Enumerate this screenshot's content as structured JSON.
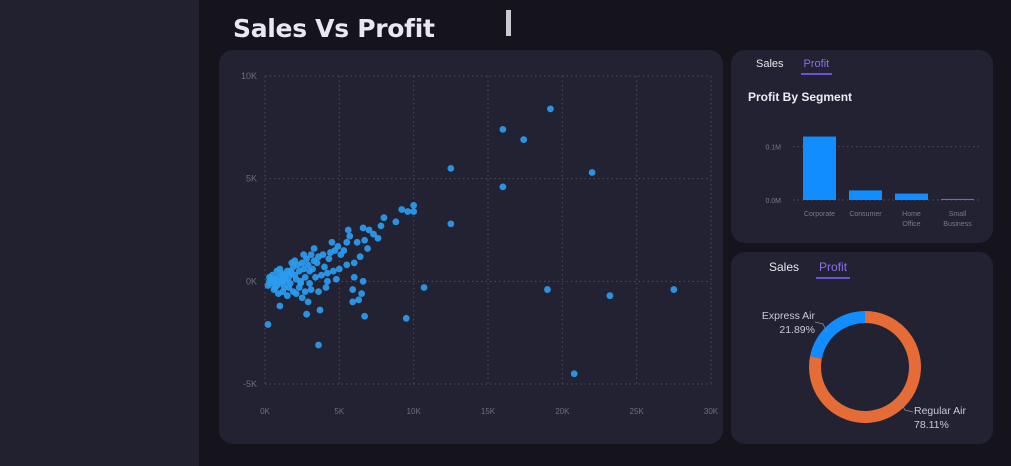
{
  "page": {
    "title": "Sales Vs Profit"
  },
  "colors": {
    "accent": "#2b9cf0",
    "bar": "#118dff",
    "donut_regular": "#e66c37",
    "donut_express": "#118dff",
    "tab_active": "#8e6df0"
  },
  "scatter_card": {
    "chart_data": {
      "type": "scatter",
      "xlim": [
        0,
        30000
      ],
      "ylim": [
        -5000,
        10000
      ],
      "x_ticks": [
        0,
        5000,
        10000,
        15000,
        20000,
        25000,
        30000
      ],
      "x_tick_labels": [
        "0K",
        "5K",
        "10K",
        "15K",
        "20K",
        "25K",
        "30K"
      ],
      "y_ticks": [
        10000,
        5000,
        0,
        -5000
      ],
      "y_tick_labels": [
        "10K",
        "5K",
        "0K",
        "-5K"
      ],
      "grid": true,
      "points": [
        [
          19200,
          8400
        ],
        [
          16000,
          7400
        ],
        [
          17400,
          6900
        ],
        [
          12500,
          5500
        ],
        [
          22000,
          5300
        ],
        [
          16000,
          4600
        ],
        [
          10000,
          3700
        ],
        [
          9600,
          3400
        ],
        [
          10000,
          3400
        ],
        [
          9200,
          3500
        ],
        [
          12500,
          2800
        ],
        [
          8000,
          3100
        ],
        [
          7800,
          2700
        ],
        [
          8800,
          2900
        ],
        [
          7300,
          2300
        ],
        [
          7600,
          2100
        ],
        [
          6600,
          2600
        ],
        [
          7000,
          2500
        ],
        [
          5600,
          2500
        ],
        [
          5700,
          2200
        ],
        [
          6200,
          1900
        ],
        [
          6700,
          2000
        ],
        [
          4900,
          1700
        ],
        [
          5300,
          1500
        ],
        [
          4400,
          1400
        ],
        [
          4700,
          1500
        ],
        [
          3900,
          1300
        ],
        [
          4300,
          1100
        ],
        [
          3600,
          1200
        ],
        [
          3300,
          1000
        ],
        [
          3100,
          1300
        ],
        [
          2800,
          1100
        ],
        [
          3500,
          900
        ],
        [
          2900,
          800
        ],
        [
          4000,
          700
        ],
        [
          3200,
          600
        ],
        [
          2500,
          900
        ],
        [
          2200,
          800
        ],
        [
          1900,
          700
        ],
        [
          2600,
          600
        ],
        [
          2300,
          500
        ],
        [
          1800,
          400
        ],
        [
          1500,
          500
        ],
        [
          2000,
          300
        ],
        [
          1600,
          200
        ],
        [
          1200,
          300
        ],
        [
          900,
          200
        ],
        [
          1300,
          100
        ],
        [
          700,
          100
        ],
        [
          500,
          0
        ],
        [
          400,
          -100
        ],
        [
          1100,
          -100
        ],
        [
          800,
          -200
        ],
        [
          300,
          0
        ],
        [
          600,
          0
        ],
        [
          200,
          -200
        ],
        [
          1000,
          0
        ],
        [
          1400,
          0
        ],
        [
          1700,
          -100
        ],
        [
          2100,
          100
        ],
        [
          2400,
          0
        ],
        [
          2700,
          200
        ],
        [
          3000,
          -100
        ],
        [
          3400,
          200
        ],
        [
          3800,
          300
        ],
        [
          4200,
          400
        ],
        [
          4600,
          500
        ],
        [
          5000,
          600
        ],
        [
          5500,
          800
        ],
        [
          6000,
          900
        ],
        [
          2300,
          -300
        ],
        [
          2700,
          -500
        ],
        [
          3100,
          -400
        ],
        [
          3600,
          -500
        ],
        [
          4100,
          -300
        ],
        [
          1900,
          -500
        ],
        [
          1500,
          -700
        ],
        [
          1200,
          -500
        ],
        [
          900,
          -600
        ],
        [
          600,
          -400
        ],
        [
          2500,
          -800
        ],
        [
          2900,
          -1000
        ],
        [
          3700,
          -1400
        ],
        [
          2800,
          -1600
        ],
        [
          1000,
          -1200
        ],
        [
          200,
          -2100
        ],
        [
          4200,
          0
        ],
        [
          4800,
          100
        ],
        [
          6400,
          1200
        ],
        [
          6000,
          200
        ],
        [
          6600,
          0
        ],
        [
          5900,
          -400
        ],
        [
          6500,
          -600
        ],
        [
          6300,
          -900
        ],
        [
          5900,
          -1000
        ],
        [
          6700,
          -1700
        ],
        [
          9500,
          -1800
        ],
        [
          10700,
          -300
        ],
        [
          3600,
          -3100
        ],
        [
          19000,
          -400
        ],
        [
          23200,
          -700
        ],
        [
          27500,
          -400
        ],
        [
          20800,
          -4500
        ],
        [
          1400,
          300
        ],
        [
          1700,
          500
        ],
        [
          2000,
          1000
        ],
        [
          1100,
          400
        ],
        [
          800,
          500
        ],
        [
          500,
          300
        ],
        [
          300,
          200
        ],
        [
          1300,
          -300
        ],
        [
          1600,
          -300
        ],
        [
          2100,
          -600
        ],
        [
          1800,
          900
        ],
        [
          2600,
          1300
        ],
        [
          3300,
          1600
        ],
        [
          3000,
          500
        ],
        [
          4500,
          1900
        ],
        [
          5100,
          1300
        ],
        [
          5500,
          1900
        ],
        [
          6900,
          1600
        ],
        [
          700,
          -300
        ],
        [
          400,
          100
        ],
        [
          1000,
          600
        ],
        [
          2400,
          -100
        ]
      ]
    }
  },
  "bar_card": {
    "tabs": [
      {
        "label": "Sales",
        "active": false
      },
      {
        "label": "Profit",
        "active": true
      }
    ],
    "title": "Profit By Segment",
    "chart_data": {
      "type": "bar",
      "categories": [
        [
          "Corporate"
        ],
        [
          "Consumer"
        ],
        [
          "Home",
          "Office"
        ],
        [
          "Small",
          "Business"
        ]
      ],
      "values": [
        0.119,
        0.018,
        0.012,
        0.002
      ],
      "ylim": [
        0,
        0.15
      ],
      "y_ticks": [
        0.1,
        0.0
      ],
      "y_tick_labels": [
        "0.1M",
        "0.0M"
      ],
      "grid": true
    }
  },
  "donut_card": {
    "tabs": [
      {
        "label": "Sales",
        "active": false
      },
      {
        "label": "Profit",
        "active": true
      }
    ],
    "chart_data": {
      "type": "pie",
      "slices": [
        {
          "label": "Regular Air",
          "percent_label": "78.11%",
          "value": 78.11
        },
        {
          "label": "Express Air",
          "percent_label": "21.89%",
          "value": 21.89
        }
      ]
    }
  }
}
